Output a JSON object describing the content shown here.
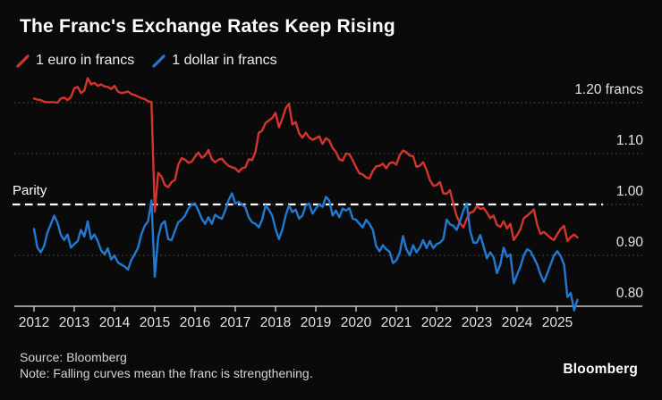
{
  "header": {
    "title": "The Franc's Exchange Rates Keep Rising",
    "legend": [
      {
        "label": "1 euro in francs"
      },
      {
        "label": "1 dollar in francs"
      }
    ]
  },
  "footer": {
    "source": "Source: Bloomberg",
    "note": "Note: Falling curves mean the franc is strengthening.",
    "brand": "Bloomberg"
  },
  "colors": {
    "background": "#0a0a0a",
    "title_text": "#ffffff",
    "axis_text": "#e2e2e2",
    "muted_text": "#d4d4d4",
    "grid": "#515151",
    "axis_line": "#c6c6c6",
    "parity_line": "#ffffff",
    "euro_line": "#d5342c",
    "dollar_line": "#2279d2"
  },
  "chart_data": {
    "type": "line",
    "title": "The Franc's Exchange Rates Keep Rising",
    "xlabel": "",
    "ylabel": "francs",
    "x_unit": "year",
    "x_start": 2012,
    "x_end": 2025.5,
    "points_per_year": 12,
    "x_tick_years": [
      2012,
      2013,
      2014,
      2015,
      2016,
      2017,
      2018,
      2019,
      2020,
      2021,
      2022,
      2023,
      2024,
      2025
    ],
    "y_ticks": [
      {
        "value": 1.2,
        "label": "1.20 francs"
      },
      {
        "value": 1.1,
        "label": "1.10"
      },
      {
        "value": 1.0,
        "label": "1.00"
      },
      {
        "value": 0.9,
        "label": "0.90"
      },
      {
        "value": 0.8,
        "label": "0.80"
      }
    ],
    "ylim": [
      0.78,
      1.26
    ],
    "grid": "dotted-horizontal",
    "legend_position": "top-left",
    "annotations": [
      {
        "type": "hline",
        "value": 1.0,
        "label": "Parity",
        "style": "dashed-white"
      }
    ],
    "series": [
      {
        "name": "1 euro in francs",
        "color": "#d5342c",
        "values": [
          1.208,
          1.206,
          1.205,
          1.202,
          1.201,
          1.201,
          1.201,
          1.2,
          1.208,
          1.21,
          1.205,
          1.211,
          1.228,
          1.231,
          1.219,
          1.224,
          1.248,
          1.236,
          1.239,
          1.233,
          1.236,
          1.232,
          1.231,
          1.227,
          1.233,
          1.222,
          1.219,
          1.22,
          1.222,
          1.217,
          1.215,
          1.212,
          1.209,
          1.207,
          1.203,
          1.201,
          0.986,
          1.062,
          1.055,
          1.038,
          1.034,
          1.044,
          1.048,
          1.078,
          1.091,
          1.088,
          1.082,
          1.084,
          1.094,
          1.102,
          1.092,
          1.096,
          1.107,
          1.089,
          1.083,
          1.088,
          1.09,
          1.082,
          1.076,
          1.073,
          1.071,
          1.064,
          1.071,
          1.073,
          1.089,
          1.087,
          1.103,
          1.141,
          1.145,
          1.16,
          1.165,
          1.17,
          1.18,
          1.152,
          1.168,
          1.189,
          1.198,
          1.157,
          1.162,
          1.14,
          1.131,
          1.141,
          1.132,
          1.127,
          1.13,
          1.134,
          1.119,
          1.13,
          1.126,
          1.111,
          1.103,
          1.089,
          1.086,
          1.1,
          1.099,
          1.087,
          1.073,
          1.061,
          1.059,
          1.053,
          1.051,
          1.066,
          1.075,
          1.076,
          1.08,
          1.071,
          1.081,
          1.083,
          1.078,
          1.097,
          1.106,
          1.103,
          1.096,
          1.095,
          1.074,
          1.076,
          1.083,
          1.068,
          1.048,
          1.037,
          1.038,
          1.044,
          1.022,
          1.021,
          1.028,
          1.001,
          0.977,
          0.963,
          0.955,
          0.972,
          0.984,
          0.986,
          0.997,
          0.991,
          0.993,
          0.984,
          0.973,
          0.978,
          0.96,
          0.956,
          0.967,
          0.953,
          0.962,
          0.93,
          0.94,
          0.952,
          0.973,
          0.978,
          0.984,
          0.99,
          0.96,
          0.942,
          0.946,
          0.94,
          0.934,
          0.93,
          0.942,
          0.952,
          0.958,
          0.928,
          0.936,
          0.941,
          0.935
        ]
      },
      {
        "name": "1 dollar in francs",
        "color": "#2279d2",
        "values": [
          0.952,
          0.915,
          0.906,
          0.918,
          0.945,
          0.961,
          0.978,
          0.964,
          0.94,
          0.93,
          0.941,
          0.915,
          0.922,
          0.928,
          0.95,
          0.937,
          0.967,
          0.932,
          0.941,
          0.928,
          0.91,
          0.902,
          0.914,
          0.892,
          0.9,
          0.886,
          0.882,
          0.878,
          0.872,
          0.891,
          0.902,
          0.915,
          0.941,
          0.958,
          0.967,
          1.008,
          0.858,
          0.935,
          0.961,
          0.967,
          0.932,
          0.93,
          0.948,
          0.965,
          0.97,
          0.978,
          0.992,
          1.0,
          1.002,
          0.988,
          0.972,
          0.962,
          0.975,
          0.962,
          0.98,
          0.975,
          0.972,
          0.988,
          1.008,
          1.022,
          1.002,
          1.005,
          1.0,
          0.994,
          0.975,
          0.965,
          0.962,
          0.955,
          0.97,
          0.998,
          0.99,
          0.978,
          0.952,
          0.932,
          0.95,
          0.978,
          0.998,
          0.985,
          0.99,
          0.972,
          0.978,
          0.998,
          1.002,
          0.982,
          0.992,
          1.0,
          0.995,
          1.015,
          1.008,
          0.978,
          0.988,
          0.975,
          0.992,
          0.988,
          0.993,
          0.972,
          0.97,
          0.962,
          0.955,
          0.97,
          0.962,
          0.95,
          0.918,
          0.908,
          0.92,
          0.912,
          0.907,
          0.885,
          0.89,
          0.905,
          0.938,
          0.912,
          0.9,
          0.92,
          0.906,
          0.915,
          0.93,
          0.914,
          0.928,
          0.914,
          0.922,
          0.925,
          0.932,
          0.97,
          0.961,
          0.958,
          0.95,
          0.968,
          0.988,
          1.002,
          0.948,
          0.925,
          0.925,
          0.94,
          0.918,
          0.894,
          0.906,
          0.896,
          0.865,
          0.882,
          0.915,
          0.897,
          0.902,
          0.845,
          0.862,
          0.878,
          0.9,
          0.912,
          0.908,
          0.895,
          0.882,
          0.862,
          0.848,
          0.865,
          0.882,
          0.9,
          0.908,
          0.898,
          0.882,
          0.818,
          0.826,
          0.792,
          0.813
        ]
      }
    ]
  }
}
